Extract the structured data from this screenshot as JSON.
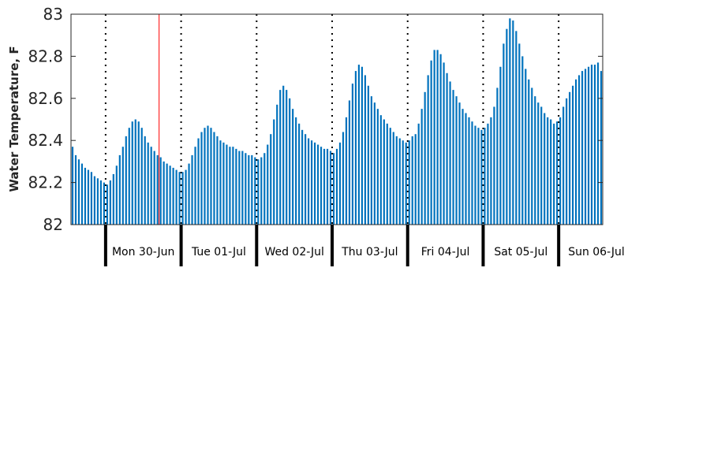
{
  "chart_data": {
    "type": "bar",
    "title": "",
    "xlabel": "",
    "ylabel": "Water Temperature, F",
    "ylim": [
      82,
      83
    ],
    "yticks": [
      82,
      82.2,
      82.4,
      82.6,
      82.8,
      83
    ],
    "ytick_labels": [
      "82",
      "82.2",
      "82.4",
      "82.6",
      "82.8",
      "83"
    ],
    "grid": false,
    "bar_color": "#0072bd",
    "marker_color": "#ff0000",
    "day_labels": [
      "Mon 30-Jun",
      "Tue 01-Jul",
      "Wed 02-Jul",
      "Thu 03-Jul",
      "Fri 04-Jul",
      "Sat 05-Jul",
      "Sun 06-Jul"
    ],
    "hours_per_day": 24,
    "first_day_offset_hours": 11,
    "current_time_marker_hour": 28,
    "values": [
      82.37,
      82.33,
      82.31,
      82.29,
      82.27,
      82.26,
      82.25,
      82.23,
      82.22,
      82.21,
      82.2,
      82.19,
      82.21,
      82.24,
      82.28,
      82.33,
      82.37,
      82.42,
      82.46,
      82.49,
      82.5,
      82.49,
      82.46,
      82.42,
      82.39,
      82.37,
      82.35,
      82.33,
      82.32,
      82.3,
      82.29,
      82.28,
      82.27,
      82.26,
      82.25,
      82.25,
      82.26,
      82.29,
      82.33,
      82.37,
      82.41,
      82.44,
      82.46,
      82.47,
      82.46,
      82.44,
      82.42,
      82.4,
      82.39,
      82.38,
      82.37,
      82.37,
      82.36,
      82.35,
      82.35,
      82.34,
      82.33,
      82.33,
      82.32,
      82.31,
      82.32,
      82.34,
      82.38,
      82.43,
      82.5,
      82.57,
      82.64,
      82.66,
      82.64,
      82.6,
      82.55,
      82.51,
      82.48,
      82.45,
      82.43,
      82.41,
      82.4,
      82.39,
      82.38,
      82.37,
      82.36,
      82.36,
      82.35,
      82.34,
      82.36,
      82.39,
      82.44,
      82.51,
      82.59,
      82.67,
      82.73,
      82.76,
      82.75,
      82.71,
      82.66,
      82.61,
      82.58,
      82.55,
      82.52,
      82.5,
      82.48,
      82.46,
      82.44,
      82.42,
      82.41,
      82.4,
      82.39,
      82.4,
      82.42,
      82.43,
      82.48,
      82.55,
      82.63,
      82.71,
      82.78,
      82.83,
      82.83,
      82.81,
      82.77,
      82.72,
      82.68,
      82.64,
      82.61,
      82.58,
      82.55,
      82.53,
      82.51,
      82.49,
      82.47,
      82.46,
      82.45,
      82.46,
      82.48,
      82.51,
      82.56,
      82.65,
      82.75,
      82.86,
      82.93,
      82.98,
      82.97,
      82.92,
      82.86,
      82.8,
      82.74,
      82.69,
      82.65,
      82.61,
      82.58,
      82.56,
      82.53,
      82.51,
      82.5,
      82.48,
      82.49,
      82.51,
      82.56,
      82.6,
      82.63,
      82.66,
      82.69,
      82.71,
      82.73,
      82.74,
      82.75,
      82.76,
      82.76,
      82.77,
      82.73
    ]
  }
}
